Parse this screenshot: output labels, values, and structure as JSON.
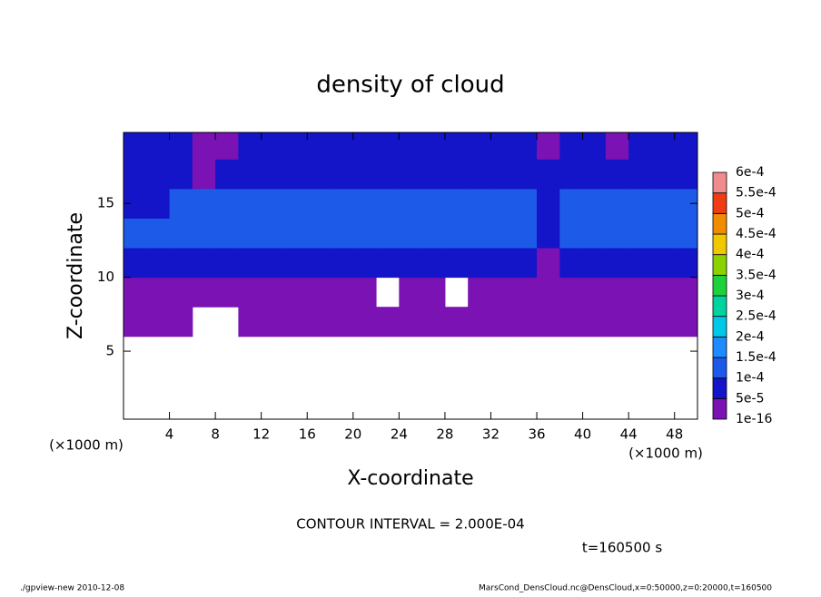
{
  "chart_data": {
    "type": "contour",
    "title": "density of cloud",
    "xlabel": "X-coordinate",
    "ylabel": "Z-coordinate",
    "xunit": "(×1000 m)",
    "yunit": "(×1000 m)",
    "xlim": [
      0,
      50
    ],
    "ylim": [
      0.4,
      19.8
    ],
    "xticks": [
      4,
      8,
      12,
      16,
      20,
      24,
      28,
      32,
      36,
      40,
      44,
      48
    ],
    "yticks": [
      5,
      10,
      15
    ],
    "x_edges": [
      0,
      2,
      4,
      6,
      8,
      10,
      12,
      14,
      16,
      18,
      20,
      22,
      24,
      26,
      28,
      30,
      32,
      34,
      36,
      38,
      40,
      42,
      44,
      46,
      48,
      50
    ],
    "z_edges": [
      0.4,
      6,
      8,
      10,
      12,
      14,
      16,
      18,
      19.8
    ],
    "z": [
      [
        null,
        null,
        null,
        null,
        null,
        null,
        null,
        null,
        null,
        null,
        null,
        null,
        null,
        null,
        null,
        null,
        null,
        null,
        null,
        null,
        null,
        null,
        null,
        null,
        null
      ],
      [
        2e-05,
        2e-05,
        2e-05,
        null,
        null,
        2e-05,
        2e-05,
        2e-05,
        2e-05,
        2e-05,
        2e-05,
        2e-05,
        2e-05,
        2e-05,
        2e-05,
        2e-05,
        2e-05,
        2e-05,
        2e-05,
        2e-05,
        2e-05,
        2e-05,
        2e-05,
        2e-05,
        2e-05
      ],
      [
        2e-05,
        2e-05,
        2e-05,
        2e-05,
        2e-05,
        2e-05,
        2e-05,
        2e-05,
        2e-05,
        2e-05,
        2e-05,
        null,
        2e-05,
        2e-05,
        null,
        2e-05,
        2e-05,
        2e-05,
        2e-05,
        2e-05,
        2e-05,
        2e-05,
        2e-05,
        2e-05,
        2e-05
      ],
      [
        7e-05,
        7e-05,
        7e-05,
        7e-05,
        7e-05,
        7e-05,
        7e-05,
        7e-05,
        7e-05,
        7e-05,
        7e-05,
        7e-05,
        7e-05,
        7e-05,
        7e-05,
        7e-05,
        7e-05,
        7e-05,
        2e-05,
        7e-05,
        7e-05,
        7e-05,
        7e-05,
        7e-05,
        7e-05
      ],
      [
        0.00012,
        0.00012,
        0.00012,
        0.00012,
        0.00012,
        0.00012,
        0.00012,
        0.00012,
        0.00012,
        0.00012,
        0.00012,
        0.00012,
        0.00012,
        0.00012,
        0.00012,
        0.00012,
        0.00012,
        0.00012,
        7e-05,
        0.00012,
        0.00012,
        0.00012,
        0.00012,
        0.00012,
        0.00012
      ],
      [
        7e-05,
        7e-05,
        0.00012,
        0.00012,
        0.00012,
        0.00012,
        0.00012,
        0.00012,
        0.00012,
        0.00012,
        0.00012,
        0.00012,
        0.00012,
        0.00012,
        0.00012,
        0.00012,
        0.00012,
        0.00012,
        7e-05,
        0.00012,
        0.00012,
        0.00012,
        0.00012,
        0.00012,
        0.00012
      ],
      [
        7e-05,
        7e-05,
        7e-05,
        2e-05,
        7e-05,
        7e-05,
        7e-05,
        7e-05,
        7e-05,
        7e-05,
        7e-05,
        7e-05,
        7e-05,
        7e-05,
        7e-05,
        7e-05,
        7e-05,
        7e-05,
        7e-05,
        7e-05,
        7e-05,
        7e-05,
        7e-05,
        7e-05,
        7e-05
      ],
      [
        7e-05,
        7e-05,
        7e-05,
        2e-05,
        2e-05,
        7e-05,
        7e-05,
        7e-05,
        7e-05,
        7e-05,
        7e-05,
        7e-05,
        7e-05,
        7e-05,
        7e-05,
        7e-05,
        7e-05,
        7e-05,
        2e-05,
        7e-05,
        7e-05,
        2e-05,
        7e-05,
        7e-05,
        7e-05
      ]
    ],
    "levels": [
      {
        "value": 1e-16,
        "label": "1e-16"
      },
      {
        "value": 5e-05,
        "label": "5e-5"
      },
      {
        "value": 0.0001,
        "label": "1e-4"
      },
      {
        "value": 0.00015,
        "label": "1.5e-4"
      },
      {
        "value": 0.0002,
        "label": "2e-4"
      },
      {
        "value": 0.00025,
        "label": "2.5e-4"
      },
      {
        "value": 0.0003,
        "label": "3e-4"
      },
      {
        "value": 0.00035,
        "label": "3.5e-4"
      },
      {
        "value": 0.0004,
        "label": "4e-4"
      },
      {
        "value": 0.00045,
        "label": "4.5e-4"
      },
      {
        "value": 0.0005,
        "label": "5e-4"
      },
      {
        "value": 0.00055,
        "label": "5.5e-4"
      },
      {
        "value": 0.0006,
        "label": "6e-4"
      }
    ],
    "colors": [
      "#7a12b4",
      "#1414c8",
      "#1e5ae8",
      "#1e8cff",
      "#00c8e6",
      "#00d2a0",
      "#1ed23c",
      "#8cd200",
      "#f0c800",
      "#f08c00",
      "#f03c14",
      "#f08c8c"
    ],
    "contour_interval": "CONTOUR INTERVAL = 2.000E-04",
    "time": "t=160500 s",
    "footer_left": "./gpview-new  2010-12-08",
    "footer_right": "MarsCond_DensCloud.nc@DensCloud,x=0:50000,z=0:20000,t=160500"
  }
}
